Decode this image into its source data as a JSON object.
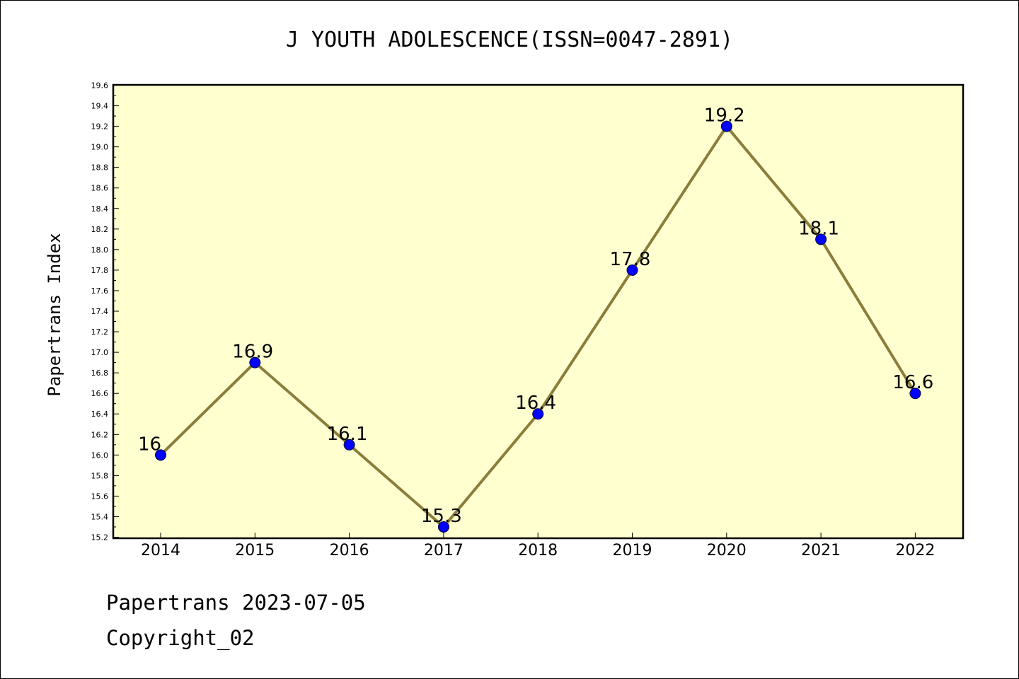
{
  "chart_data": {
    "type": "line",
    "title": "J YOUTH ADOLESCENCE(ISSN=0047-2891)",
    "xlabel": "",
    "ylabel": "Papertrans Index",
    "categories": [
      "2014",
      "2015",
      "2016",
      "2017",
      "2018",
      "2019",
      "2020",
      "2021",
      "2022"
    ],
    "series": [
      {
        "values": [
          16,
          16.9,
          16.1,
          15.3,
          16.4,
          17.8,
          19.2,
          18.1,
          16.6
        ],
        "labels": [
          "16",
          "16.9",
          "16.1",
          "15.3",
          "16.4",
          "17.8",
          "19.2",
          "18.1",
          "16.6"
        ]
      }
    ],
    "ylim": [
      15.2,
      19.6
    ],
    "ytick_step": 0.2,
    "grid": false,
    "colors": {
      "plot_background": "#ffffd0",
      "line": "#8b7d3a",
      "marker": "#0000ff"
    }
  },
  "footer": {
    "line1": "Papertrans 2023-07-05",
    "line2": "Copyright_02"
  }
}
